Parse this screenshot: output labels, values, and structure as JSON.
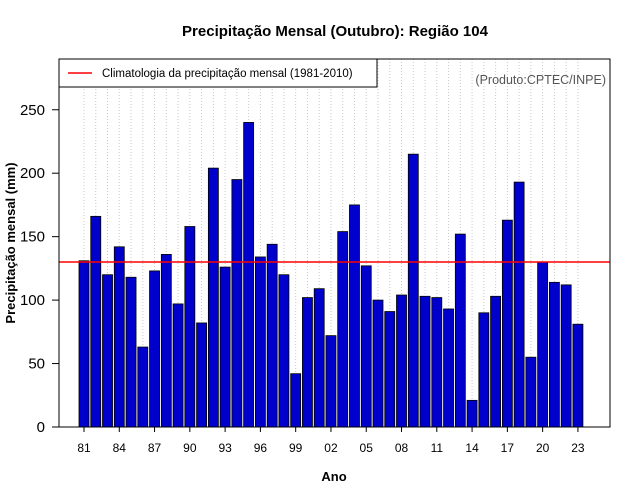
{
  "chart_data": {
    "type": "bar",
    "title": "Precipitação Mensal (Outubro): Região 104",
    "xlabel": "Ano",
    "ylabel": "Precipitação mensal (mm)",
    "credit": "(Produto:CPTEC/INPE)",
    "legend": {
      "label": "Climatologia da precipitação mensal (1981-2010)",
      "color": "#ff0000",
      "position": "top-left"
    },
    "climatology": 130,
    "ylim": [
      0,
      290
    ],
    "yticks": [
      0,
      50,
      100,
      150,
      200,
      250
    ],
    "years": [
      1981,
      1982,
      1983,
      1984,
      1985,
      1986,
      1987,
      1988,
      1989,
      1990,
      1991,
      1992,
      1993,
      1994,
      1995,
      1996,
      1997,
      1998,
      1999,
      2000,
      2001,
      2002,
      2003,
      2004,
      2005,
      2006,
      2007,
      2008,
      2009,
      2010,
      2011,
      2012,
      2013,
      2014,
      2015,
      2016,
      2017,
      2018,
      2019,
      2020,
      2021,
      2022,
      2023
    ],
    "values": [
      131,
      166,
      120,
      142,
      118,
      63,
      123,
      136,
      97,
      158,
      82,
      204,
      126,
      195,
      240,
      134,
      144,
      120,
      42,
      102,
      109,
      72,
      154,
      175,
      127,
      100,
      91,
      104,
      215,
      103,
      102,
      93,
      152,
      21,
      90,
      103,
      163,
      193,
      55,
      130,
      114,
      112,
      81
    ],
    "xtick_labels": [
      {
        "year": 1981,
        "label": "81"
      },
      {
        "year": 1984,
        "label": "84"
      },
      {
        "year": 1987,
        "label": "87"
      },
      {
        "year": 1990,
        "label": "90"
      },
      {
        "year": 1993,
        "label": "93"
      },
      {
        "year": 1996,
        "label": "96"
      },
      {
        "year": 1999,
        "label": "99"
      },
      {
        "year": 2002,
        "label": "02"
      },
      {
        "year": 2005,
        "label": "05"
      },
      {
        "year": 2008,
        "label": "08"
      },
      {
        "year": 2011,
        "label": "11"
      },
      {
        "year": 2014,
        "label": "14"
      },
      {
        "year": 2017,
        "label": "17"
      },
      {
        "year": 2020,
        "label": "20"
      },
      {
        "year": 2023,
        "label": "23"
      }
    ],
    "grid": "vertical dotted",
    "colors": {
      "bar": "#0000cd",
      "bar_edge": "#000000",
      "climatology": "#ff0000",
      "grid": "#c8c8c8"
    }
  }
}
